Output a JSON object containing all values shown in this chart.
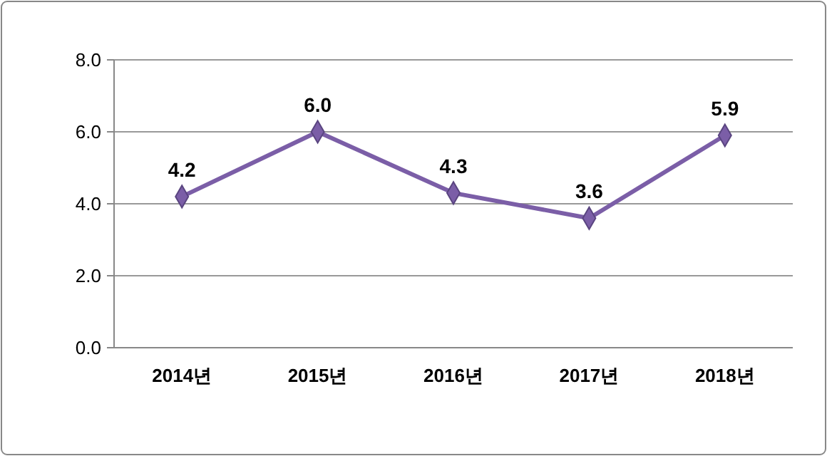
{
  "chart_data": {
    "type": "line",
    "categories": [
      "2014년",
      "2015년",
      "2016년",
      "2017년",
      "2018년"
    ],
    "series": [
      {
        "color": "#7b5ea7",
        "values": [
          4.2,
          6.0,
          4.3,
          3.6,
          5.9
        ]
      }
    ],
    "ylim": [
      0,
      8
    ],
    "yticks": [
      {
        "value": 0,
        "label": "0.0"
      },
      {
        "value": 2,
        "label": "2.0"
      },
      {
        "value": 4,
        "label": "4.0"
      },
      {
        "value": 6,
        "label": "6.0"
      },
      {
        "value": 8,
        "label": "8.0"
      }
    ],
    "grid": "y",
    "marker": "diamond",
    "value_labels": [
      "4.2",
      "6.0",
      "4.3",
      "3.6",
      "5.9"
    ]
  }
}
